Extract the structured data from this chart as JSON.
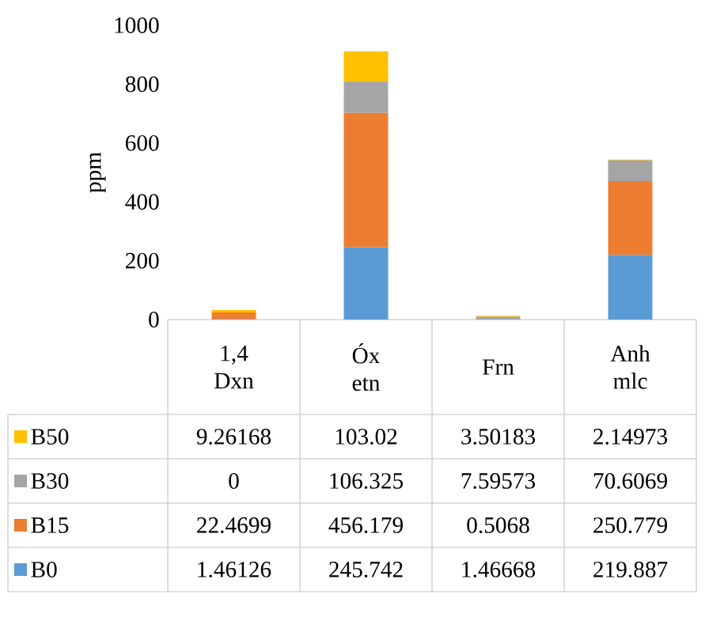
{
  "chart_data": {
    "type": "bar",
    "stacked": true,
    "ylabel": "ppm",
    "categories": [
      "1,4 Dxn",
      "Óx etn",
      "Frn",
      "Anh mlc"
    ],
    "series": [
      {
        "name": "B0",
        "color": "#5b9bd5",
        "values": [
          1.46126,
          245.742,
          1.46668,
          219.887
        ]
      },
      {
        "name": "B15",
        "color": "#ed7d31",
        "values": [
          22.4699,
          456.179,
          0.5068,
          250.779
        ]
      },
      {
        "name": "B30",
        "color": "#a5a5a5",
        "values": [
          0,
          106.325,
          7.59573,
          70.6069
        ]
      },
      {
        "name": "B50",
        "color": "#ffc000",
        "values": [
          9.26168,
          103.02,
          3.50183,
          2.14973
        ]
      }
    ],
    "ylim": [
      0,
      1000
    ],
    "yticks": [
      0,
      200,
      400,
      600,
      800,
      1000
    ],
    "data_labels": true,
    "legend": "bottom",
    "grid": false
  }
}
